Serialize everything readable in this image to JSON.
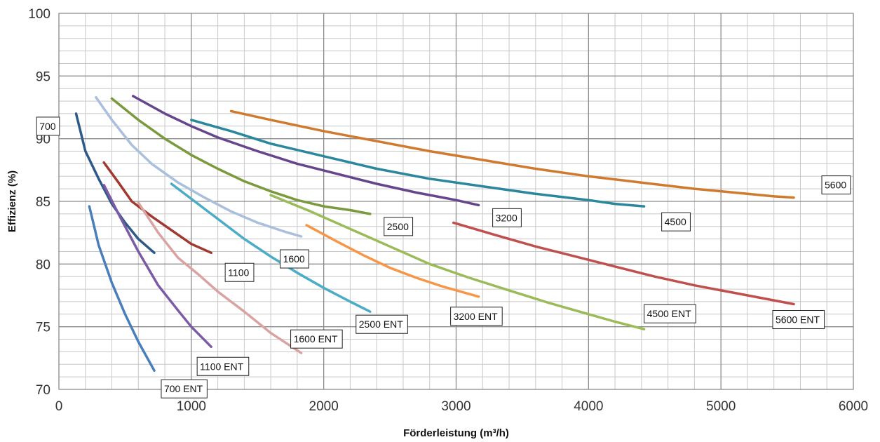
{
  "chart_data": {
    "type": "line",
    "title": "",
    "xlabel": "Förderleistung (m³/h)",
    "ylabel": "Effizienz (%)",
    "xlim": [
      0,
      6000
    ],
    "ylim": [
      70,
      100
    ],
    "x_ticks": [
      "0",
      "1000",
      "2000",
      "3000",
      "4000",
      "5000",
      "6000"
    ],
    "y_ticks": [
      "70",
      "75",
      "80",
      "85",
      "90",
      "95",
      "100"
    ],
    "grid": true,
    "series": [
      {
        "name": "700",
        "color": "#2E5A87",
        "points": [
          [
            130,
            92.0
          ],
          [
            200,
            89.0
          ],
          [
            300,
            86.8
          ],
          [
            400,
            84.8
          ],
          [
            500,
            83.3
          ],
          [
            600,
            82.0
          ],
          [
            720,
            80.9
          ]
        ]
      },
      {
        "name": "700 ENT",
        "color": "#4A7EBB",
        "points": [
          [
            230,
            84.6
          ],
          [
            300,
            81.5
          ],
          [
            400,
            78.5
          ],
          [
            500,
            76.0
          ],
          [
            600,
            73.8
          ],
          [
            720,
            71.5
          ]
        ]
      },
      {
        "name": "1100",
        "color": "#A0392F",
        "points": [
          [
            340,
            88.1
          ],
          [
            450,
            86.5
          ],
          [
            550,
            85.0
          ],
          [
            700,
            83.8
          ],
          [
            850,
            82.7
          ],
          [
            1000,
            81.6
          ],
          [
            1150,
            80.9
          ]
        ]
      },
      {
        "name": "1100 ENT",
        "color": "#7B5BA6",
        "points": [
          [
            340,
            86.3
          ],
          [
            450,
            84.0
          ],
          [
            600,
            81.0
          ],
          [
            750,
            78.3
          ],
          [
            900,
            76.3
          ],
          [
            1000,
            75.0
          ],
          [
            1150,
            73.4
          ]
        ]
      },
      {
        "name": "1600",
        "color": "#A9BFDC",
        "points": [
          [
            280,
            93.3
          ],
          [
            400,
            91.5
          ],
          [
            550,
            89.5
          ],
          [
            700,
            88.0
          ],
          [
            900,
            86.5
          ],
          [
            1100,
            85.3
          ],
          [
            1300,
            84.2
          ],
          [
            1500,
            83.3
          ],
          [
            1700,
            82.6
          ],
          [
            1830,
            82.2
          ]
        ]
      },
      {
        "name": "1600 ENT",
        "color": "#D9A3A1",
        "points": [
          [
            600,
            84.9
          ],
          [
            750,
            82.5
          ],
          [
            900,
            80.5
          ],
          [
            1050,
            79.2
          ],
          [
            1200,
            77.8
          ],
          [
            1400,
            76.2
          ],
          [
            1600,
            74.5
          ],
          [
            1830,
            72.9
          ]
        ]
      },
      {
        "name": "2500",
        "color": "#7A9A3D",
        "points": [
          [
            400,
            93.2
          ],
          [
            600,
            91.5
          ],
          [
            800,
            90.0
          ],
          [
            1000,
            88.7
          ],
          [
            1200,
            87.6
          ],
          [
            1400,
            86.6
          ],
          [
            1600,
            85.8
          ],
          [
            1800,
            85.1
          ],
          [
            2000,
            84.6
          ],
          [
            2200,
            84.3
          ],
          [
            2350,
            84.0
          ]
        ]
      },
      {
        "name": "2500 ENT",
        "color": "#4AACC6",
        "points": [
          [
            850,
            86.4
          ],
          [
            1000,
            85.2
          ],
          [
            1200,
            83.6
          ],
          [
            1400,
            82.0
          ],
          [
            1600,
            80.6
          ],
          [
            1800,
            79.3
          ],
          [
            2000,
            78.1
          ],
          [
            2200,
            77.0
          ],
          [
            2350,
            76.2
          ]
        ]
      },
      {
        "name": "3200",
        "color": "#65468C",
        "points": [
          [
            560,
            93.4
          ],
          [
            800,
            92.0
          ],
          [
            1000,
            91.0
          ],
          [
            1200,
            90.1
          ],
          [
            1500,
            89.0
          ],
          [
            1800,
            88.0
          ],
          [
            2100,
            87.2
          ],
          [
            2400,
            86.4
          ],
          [
            2700,
            85.7
          ],
          [
            3000,
            85.1
          ],
          [
            3170,
            84.7
          ]
        ]
      },
      {
        "name": "3200 ENT",
        "color": "#F79646",
        "points": [
          [
            1870,
            83.1
          ],
          [
            2100,
            81.8
          ],
          [
            2300,
            80.7
          ],
          [
            2500,
            79.7
          ],
          [
            2700,
            78.9
          ],
          [
            2900,
            78.2
          ],
          [
            3170,
            77.4
          ]
        ]
      },
      {
        "name": "4500",
        "color": "#2B879C",
        "points": [
          [
            1000,
            91.5
          ],
          [
            1300,
            90.6
          ],
          [
            1600,
            89.6
          ],
          [
            2000,
            88.6
          ],
          [
            2400,
            87.6
          ],
          [
            2800,
            86.8
          ],
          [
            3200,
            86.2
          ],
          [
            3600,
            85.6
          ],
          [
            4000,
            85.1
          ],
          [
            4200,
            84.8
          ],
          [
            4420,
            84.6
          ]
        ]
      },
      {
        "name": "4500 ENT",
        "color": "#9BBB59",
        "points": [
          [
            1600,
            85.5
          ],
          [
            1900,
            84.2
          ],
          [
            2200,
            82.8
          ],
          [
            2500,
            81.4
          ],
          [
            2800,
            80.0
          ],
          [
            3100,
            78.9
          ],
          [
            3400,
            77.9
          ],
          [
            3700,
            76.9
          ],
          [
            4000,
            76.0
          ],
          [
            4200,
            75.4
          ],
          [
            4420,
            74.8
          ]
        ]
      },
      {
        "name": "5600",
        "color": "#D07A2E",
        "points": [
          [
            1300,
            92.2
          ],
          [
            1600,
            91.5
          ],
          [
            2000,
            90.6
          ],
          [
            2400,
            89.8
          ],
          [
            2800,
            89.0
          ],
          [
            3200,
            88.3
          ],
          [
            3600,
            87.6
          ],
          [
            4000,
            87.0
          ],
          [
            4400,
            86.5
          ],
          [
            4800,
            86.0
          ],
          [
            5200,
            85.6
          ],
          [
            5400,
            85.4
          ],
          [
            5550,
            85.3
          ]
        ]
      },
      {
        "name": "5600 ENT",
        "color": "#C0504D",
        "points": [
          [
            2980,
            83.3
          ],
          [
            3300,
            82.3
          ],
          [
            3600,
            81.4
          ],
          [
            3900,
            80.6
          ],
          [
            4200,
            79.8
          ],
          [
            4500,
            79.0
          ],
          [
            4800,
            78.3
          ],
          [
            5100,
            77.7
          ],
          [
            5400,
            77.1
          ],
          [
            5550,
            76.8
          ]
        ]
      }
    ]
  }
}
